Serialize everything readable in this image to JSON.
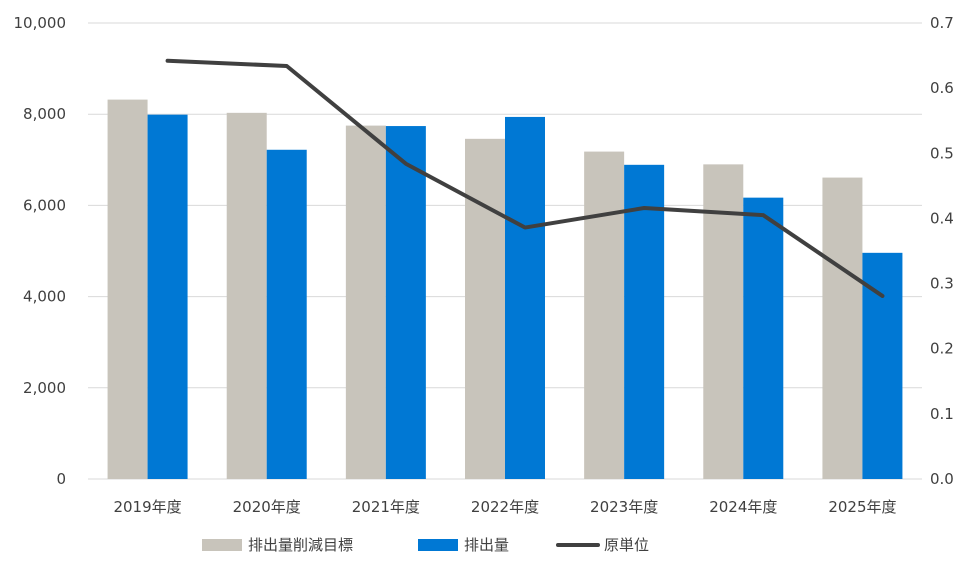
{
  "chart_data": {
    "type": "bar",
    "categories": [
      "2019年度",
      "2020年度",
      "2021年度",
      "2022年度",
      "2023年度",
      "2024年度",
      "2025年度"
    ],
    "series": [
      {
        "name": "排出量削減目標",
        "type": "bar",
        "axis": "left",
        "color": "#c8c4bb",
        "values": [
          8320,
          8030,
          7750,
          7460,
          7180,
          6900,
          6610
        ]
      },
      {
        "name": "排出量",
        "type": "bar",
        "axis": "left",
        "color": "#0078d4",
        "values": [
          7990,
          7220,
          7740,
          7940,
          6890,
          6170,
          4960
        ]
      },
      {
        "name": "原単位",
        "type": "line",
        "axis": "right",
        "color": "#404040",
        "values": [
          0.642,
          0.634,
          0.484,
          0.386,
          0.416,
          0.405,
          0.281
        ]
      }
    ],
    "y_left": {
      "min": 0,
      "max": 10000,
      "ticks": [
        "0",
        "2,000",
        "4,000",
        "6,000",
        "8,000",
        "10,000"
      ]
    },
    "y_right": {
      "min": 0,
      "max": 0.7,
      "ticks": [
        "0.0",
        "0.1",
        "0.2",
        "0.3",
        "0.4",
        "0.5",
        "0.6",
        "0.7"
      ]
    },
    "grid": true,
    "legend_position": "bottom"
  }
}
